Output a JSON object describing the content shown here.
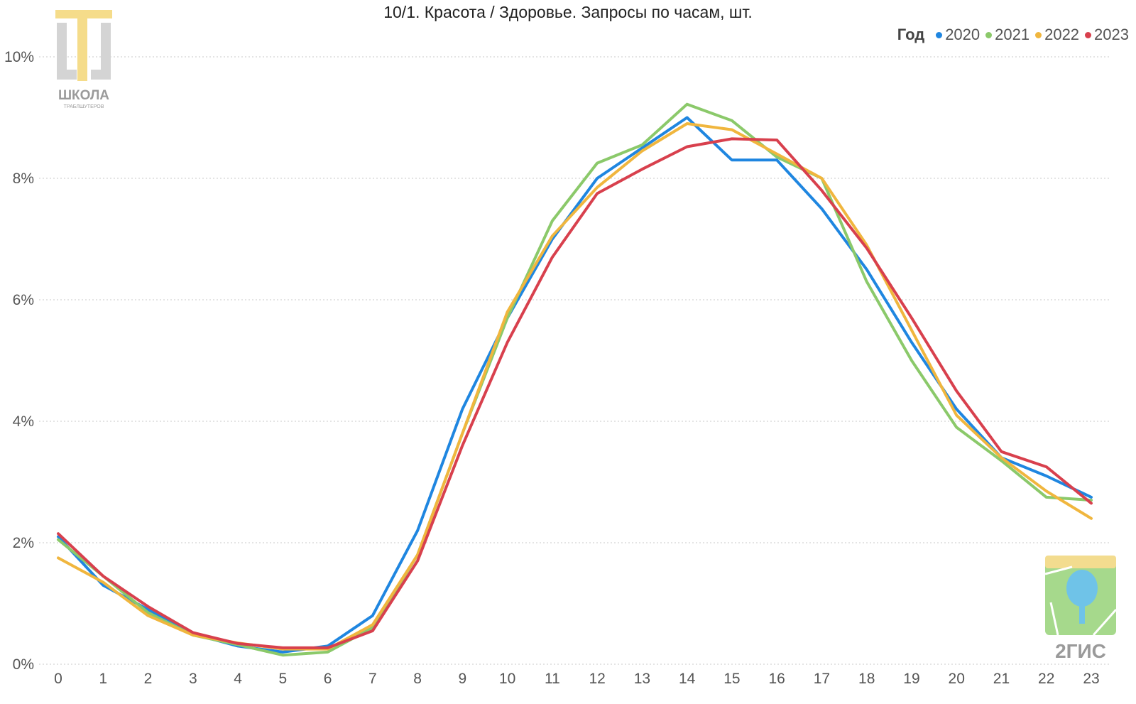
{
  "chart_data": {
    "type": "line",
    "title": "10/1. Красота / Здоровье. Запросы по часам, шт.",
    "xlabel": "",
    "ylabel": "",
    "x": [
      0,
      1,
      2,
      3,
      4,
      5,
      6,
      7,
      8,
      9,
      10,
      11,
      12,
      13,
      14,
      15,
      16,
      17,
      18,
      19,
      20,
      21,
      22,
      23
    ],
    "x_tick_labels": [
      "0",
      "1",
      "2",
      "3",
      "4",
      "5",
      "6",
      "7",
      "8",
      "9",
      "10",
      "11",
      "12",
      "13",
      "14",
      "15",
      "16",
      "17",
      "18",
      "19",
      "20",
      "21",
      "22",
      "23"
    ],
    "ylim": [
      0,
      10
    ],
    "y_ticks": [
      0,
      2,
      4,
      6,
      8,
      10
    ],
    "y_tick_labels": [
      "0%",
      "2%",
      "4%",
      "6%",
      "8%",
      "10%"
    ],
    "grid": "horizontal dotted",
    "legend": {
      "title": "Год",
      "placement": "top-right"
    },
    "series": [
      {
        "name": "2020",
        "color": "#1f86e0",
        "values": [
          2.1,
          1.3,
          0.9,
          0.5,
          0.3,
          0.2,
          0.3,
          0.8,
          2.2,
          4.2,
          5.7,
          7.0,
          8.0,
          8.5,
          9.0,
          8.3,
          8.3,
          7.5,
          6.5,
          5.3,
          4.2,
          3.4,
          3.1,
          2.75
        ]
      },
      {
        "name": "2021",
        "color": "#8bc96a",
        "values": [
          2.05,
          1.45,
          0.85,
          0.48,
          0.32,
          0.15,
          0.2,
          0.6,
          1.8,
          3.8,
          5.7,
          7.3,
          8.25,
          8.55,
          9.22,
          8.95,
          8.35,
          8.0,
          6.3,
          5.0,
          3.9,
          3.35,
          2.75,
          2.7
        ]
      },
      {
        "name": "2022",
        "color": "#f0b63e",
        "values": [
          1.75,
          1.35,
          0.8,
          0.48,
          0.35,
          0.25,
          0.25,
          0.65,
          1.8,
          3.8,
          5.8,
          7.05,
          7.85,
          8.45,
          8.9,
          8.8,
          8.4,
          8.0,
          6.9,
          5.5,
          4.1,
          3.4,
          2.85,
          2.4
        ]
      },
      {
        "name": "2023",
        "color": "#d8404d",
        "values": [
          2.15,
          1.45,
          0.95,
          0.52,
          0.34,
          0.27,
          0.27,
          0.55,
          1.7,
          3.6,
          5.3,
          6.7,
          7.75,
          8.15,
          8.52,
          8.65,
          8.63,
          7.8,
          6.85,
          5.7,
          4.5,
          3.5,
          3.25,
          2.65
        ]
      }
    ]
  },
  "logos": [
    {
      "name": "school-logo",
      "text": "ШКОЛА",
      "subtext": "ТРАБЛШУТЕРОВ"
    },
    {
      "name": "2gis-logo",
      "text": "2ГИС"
    }
  ]
}
